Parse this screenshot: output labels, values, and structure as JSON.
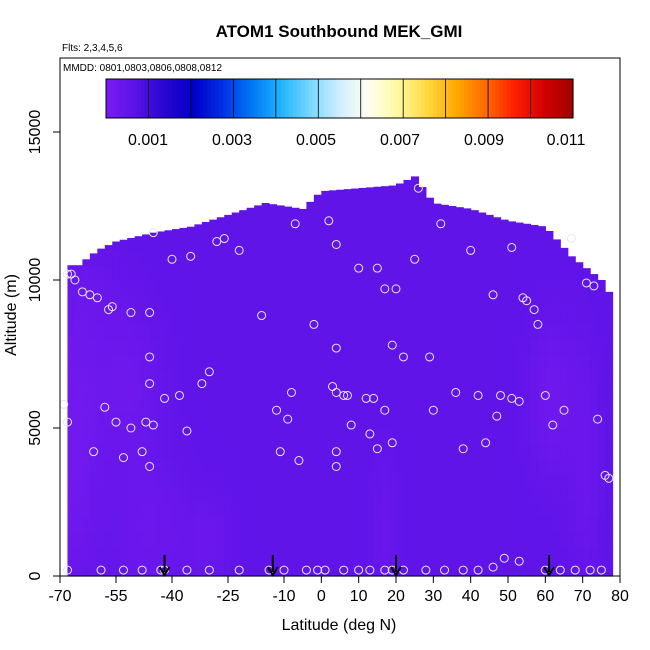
{
  "chart_data": {
    "type": "heatmap",
    "title": "ATOM1 Southbound MEK_GMI",
    "subtitle_flights": "Flts: 2,3,4,5,6",
    "subtitle_dates": "MMDD: 0801,0803,0806,0808,0812",
    "xlabel": "Latitude (deg N)",
    "ylabel": "Altitude (m)",
    "xlim": [
      -70,
      80
    ],
    "ylim": [
      0,
      17500
    ],
    "x_ticks": [
      -70,
      -55,
      -40,
      -25,
      -10,
      0,
      10,
      20,
      30,
      40,
      50,
      60,
      70,
      80
    ],
    "y_ticks": [
      0,
      5000,
      10000,
      15000
    ],
    "colorbar": {
      "min": 0.0,
      "max": 0.011,
      "ticks": [
        0.001,
        0.003,
        0.005,
        0.007,
        0.009,
        0.011
      ],
      "tick_labels": [
        "0.001",
        "0.003",
        "0.005",
        "0.007",
        "0.009",
        "0.011"
      ],
      "colors": [
        "#7a1cf2",
        "#5a12e6",
        "#2a06d2",
        "#0000c8",
        "#0030e6",
        "#0078f4",
        "#20b4ff",
        "#7ad6ff",
        "#d0eeff",
        "#fffff0",
        "#fff9a0",
        "#ffd840",
        "#ffa800",
        "#ff6a00",
        "#ff1e00",
        "#d40000",
        "#a00000"
      ]
    },
    "top_profile": [
      [
        -70,
        10500
      ],
      [
        -65,
        10500
      ],
      [
        -60,
        11000
      ],
      [
        -55,
        11300
      ],
      [
        -45,
        11600
      ],
      [
        -35,
        11800
      ],
      [
        -25,
        12200
      ],
      [
        -15,
        12600
      ],
      [
        -5,
        12400
      ],
      [
        0,
        13000
      ],
      [
        10,
        13100
      ],
      [
        20,
        13200
      ],
      [
        25,
        13500
      ],
      [
        30,
        12600
      ],
      [
        40,
        12400
      ],
      [
        50,
        12000
      ],
      [
        60,
        11800
      ],
      [
        67,
        10800
      ],
      [
        72,
        10300
      ],
      [
        75,
        10000
      ],
      [
        78,
        9400
      ]
    ],
    "arrows_x": [
      -42,
      -13,
      20,
      61
    ],
    "points": [
      [
        -68,
        10200
      ],
      [
        -67,
        10200
      ],
      [
        -66,
        10000
      ],
      [
        -64,
        9600
      ],
      [
        -62,
        9500
      ],
      [
        -60,
        9400
      ],
      [
        -57,
        9000
      ],
      [
        -56,
        9100
      ],
      [
        -51,
        8900
      ],
      [
        -46,
        8900
      ],
      [
        -69,
        5800
      ],
      [
        -68,
        5200
      ],
      [
        -58,
        5700
      ],
      [
        -61,
        4200
      ],
      [
        -55,
        5200
      ],
      [
        -53,
        4000
      ],
      [
        -51,
        5000
      ],
      [
        -48,
        4200
      ],
      [
        -47,
        5200
      ],
      [
        -45,
        5100
      ],
      [
        -46,
        3700
      ],
      [
        -46,
        7400
      ],
      [
        -46,
        6500
      ],
      [
        -42,
        6000
      ],
      [
        -38,
        6100
      ],
      [
        -36,
        4900
      ],
      [
        -32,
        6500
      ],
      [
        -30,
        6900
      ],
      [
        -40,
        10700
      ],
      [
        -35,
        10800
      ],
      [
        -45,
        11600
      ],
      [
        -28,
        11300
      ],
      [
        -26,
        11400
      ],
      [
        -22,
        11000
      ],
      [
        -16,
        8800
      ],
      [
        -12,
        5600
      ],
      [
        -9,
        5300
      ],
      [
        -8,
        6200
      ],
      [
        -6,
        3900
      ],
      [
        -11,
        4200
      ],
      [
        -7,
        11900
      ],
      [
        -2,
        8500
      ],
      [
        2,
        12000
      ],
      [
        3,
        6400
      ],
      [
        4,
        6200
      ],
      [
        4,
        7700
      ],
      [
        6,
        6100
      ],
      [
        7,
        6100
      ],
      [
        4,
        11200
      ],
      [
        4,
        4200
      ],
      [
        4,
        3700
      ],
      [
        8,
        5100
      ],
      [
        10,
        10400
      ],
      [
        12,
        6000
      ],
      [
        13,
        4800
      ],
      [
        14,
        6000
      ],
      [
        15,
        10400
      ],
      [
        15,
        4300
      ],
      [
        17,
        9700
      ],
      [
        17,
        5600
      ],
      [
        19,
        4500
      ],
      [
        19,
        7800
      ],
      [
        20,
        9700
      ],
      [
        22,
        7400
      ],
      [
        25,
        10700
      ],
      [
        26,
        13100
      ],
      [
        29,
        7400
      ],
      [
        30,
        5600
      ],
      [
        32,
        11900
      ],
      [
        36,
        6200
      ],
      [
        38,
        4300
      ],
      [
        40,
        11000
      ],
      [
        42,
        6100
      ],
      [
        44,
        4500
      ],
      [
        46,
        9500
      ],
      [
        47,
        5400
      ],
      [
        48,
        6100
      ],
      [
        51,
        11100
      ],
      [
        51,
        6000
      ],
      [
        53,
        5900
      ],
      [
        54,
        9400
      ],
      [
        55,
        9300
      ],
      [
        57,
        9000
      ],
      [
        58,
        8500
      ],
      [
        60,
        6100
      ],
      [
        62,
        5100
      ],
      [
        65,
        5600
      ],
      [
        67,
        11400
      ],
      [
        71,
        9900
      ],
      [
        73,
        9800
      ],
      [
        74,
        5300
      ],
      [
        76,
        3400
      ],
      [
        77,
        3300
      ],
      [
        -68,
        200
      ],
      [
        -59,
        200
      ],
      [
        -53,
        200
      ],
      [
        -48,
        200
      ],
      [
        -43,
        200
      ],
      [
        -42,
        200
      ],
      [
        -36,
        200
      ],
      [
        -30,
        200
      ],
      [
        -22,
        200
      ],
      [
        -14,
        200
      ],
      [
        -10,
        200
      ],
      [
        -4,
        200
      ],
      [
        -1,
        200
      ],
      [
        1,
        200
      ],
      [
        6,
        200
      ],
      [
        10,
        200
      ],
      [
        13,
        200
      ],
      [
        17,
        200
      ],
      [
        19,
        200
      ],
      [
        22,
        200
      ],
      [
        28,
        200
      ],
      [
        33,
        200
      ],
      [
        38,
        200
      ],
      [
        42,
        200
      ],
      [
        46,
        300
      ],
      [
        49,
        600
      ],
      [
        53,
        500
      ],
      [
        60,
        200
      ],
      [
        64,
        200
      ],
      [
        68,
        200
      ],
      [
        72,
        200
      ],
      [
        75,
        200
      ]
    ]
  }
}
